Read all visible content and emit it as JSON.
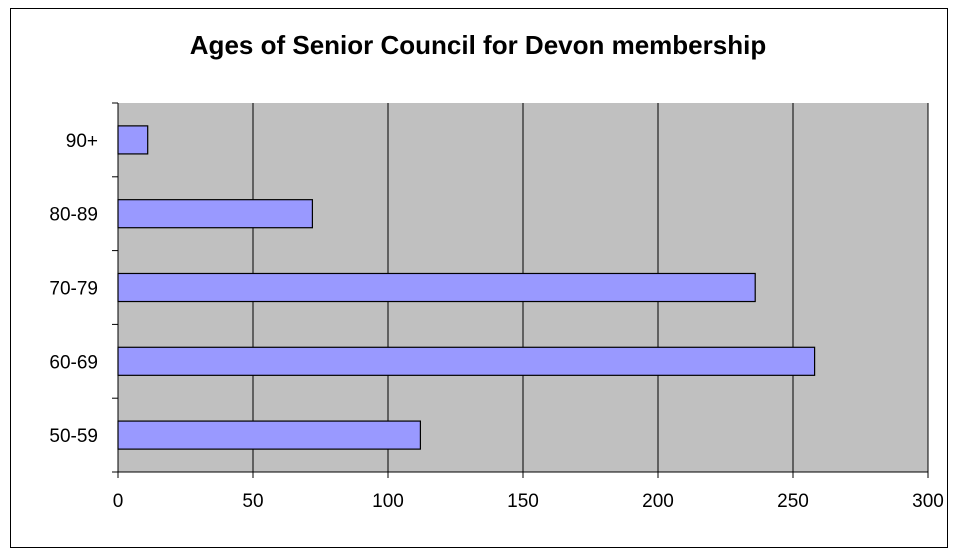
{
  "chart_data": {
    "type": "bar",
    "orientation": "horizontal",
    "title": "Ages of Senior Council for Devon membership",
    "categories": [
      "50-59",
      "60-69",
      "70-79",
      "80-89",
      "90+"
    ],
    "values": [
      112,
      258,
      236,
      72,
      11
    ],
    "xlabel": "",
    "ylabel": "",
    "xlim": [
      0,
      300
    ],
    "xticks": [
      0,
      50,
      100,
      150,
      200,
      250,
      300
    ],
    "grid": true,
    "legend": "none",
    "colors": {
      "bar_fill": "#9999ff",
      "plot_background": "#c0c0c0",
      "bar_stroke": "#000000"
    }
  }
}
